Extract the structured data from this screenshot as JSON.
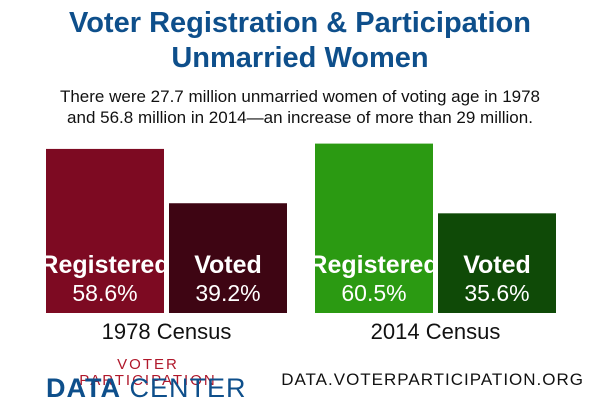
{
  "title_line1": "Voter Registration & Participation",
  "title_line2": "Unmarried Women",
  "subtitle_line1": "There were 27.7 million unmarried women of voting age in 1978",
  "subtitle_line2": "and 56.8 million in 2014—an increase of more than 29 million.",
  "chart_data": {
    "type": "bar",
    "groups": [
      {
        "label": "1978 Census",
        "bars": [
          {
            "name": "Registered",
            "value": 58.6,
            "value_label": "58.6%",
            "color": "#7d0a22"
          },
          {
            "name": "Voted",
            "value": 39.2,
            "value_label": "39.2%",
            "color": "#3e0513"
          }
        ]
      },
      {
        "label": "2014 Census",
        "bars": [
          {
            "name": "Registered",
            "value": 60.5,
            "value_label": "60.5%",
            "color": "#2b9a12"
          },
          {
            "name": "Voted",
            "value": 35.6,
            "value_label": "35.6%",
            "color": "#0f4a07"
          }
        ]
      }
    ],
    "ylim": [
      0,
      100
    ]
  },
  "brand": {
    "line1": "VOTER PARTICIPATION",
    "line2_bold": "DATA",
    "line2_light": " CENTER",
    "accent_red": "#b0182b",
    "accent_blue": "#0e4f8b"
  },
  "site_url": "DATA.VOTERPARTICIPATION.ORG"
}
